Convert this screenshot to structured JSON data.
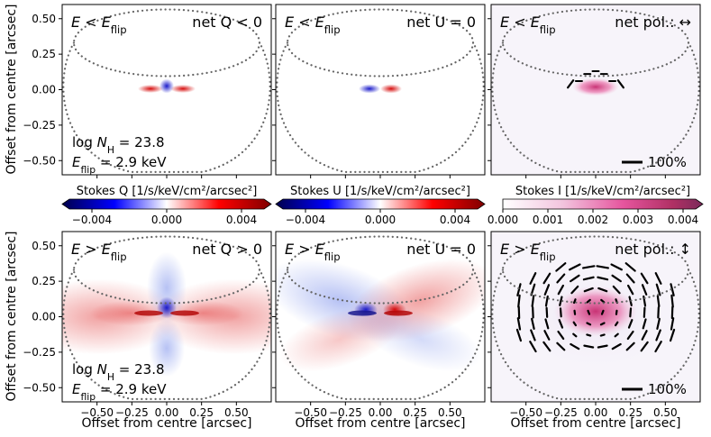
{
  "figure": {
    "common": {
      "ylabel": "Offset from centre [arcsec]",
      "xlabel": "Offset from centre [arcsec]",
      "yticks": [
        "0.50",
        "0.25",
        "0.00",
        "−0.25",
        "−0.50"
      ],
      "xticks": [
        "−0.50",
        "−0.25",
        "0.00",
        "0.25",
        "0.50"
      ],
      "annotations": {
        "logNH": "log N_H = 23.8",
        "Eflip": "E_flip = 2.9 keV",
        "scalebar": "100%"
      }
    },
    "colorbars": [
      {
        "label": "Stokes Q [1/s/keV/cm²/arcsec²]",
        "ticks": [
          "−0.004",
          "0.000",
          "0.004"
        ],
        "cmap": "seismic"
      },
      {
        "label": "Stokes U [1/s/keV/cm²/arcsec²]",
        "ticks": [
          "−0.004",
          "0.000",
          "0.004"
        ],
        "cmap": "seismic"
      },
      {
        "label": "Stokes I [1/s/keV/cm²/arcsec²]",
        "ticks": [
          "0.000",
          "0.001",
          "0.002",
          "0.003",
          "0.004"
        ],
        "cmap": "pink-purple"
      }
    ],
    "colors": {
      "positive": "#d40000",
      "negative": "#1010c8",
      "intensity": "#d0307a",
      "bar": "#000000"
    }
  },
  "chart_data": [
    {
      "type": "heatmap",
      "panel": "top-left",
      "quantity": "Stokes Q",
      "regime": "E < E_flip",
      "title_left": "E < E_flip",
      "title_right": "net Q < 0",
      "xlim": [
        -0.75,
        0.75
      ],
      "ylim": [
        -0.6,
        0.6
      ],
      "vmin": -0.005,
      "vmax": 0.005
    },
    {
      "type": "heatmap",
      "panel": "top-middle",
      "quantity": "Stokes U",
      "regime": "E < E_flip",
      "title_left": "E < E_flip",
      "title_right": "net U = 0",
      "xlim": [
        -0.75,
        0.75
      ],
      "ylim": [
        -0.6,
        0.6
      ],
      "vmin": -0.005,
      "vmax": 0.005
    },
    {
      "type": "heatmap",
      "panel": "top-right",
      "quantity": "Stokes I",
      "regime": "E < E_flip",
      "title_left": "E < E_flip",
      "title_right": "net pol.: ↔",
      "xlim": [
        -0.75,
        0.75
      ],
      "ylim": [
        -0.6,
        0.6
      ],
      "vmin": 0.0,
      "vmax": 0.0045
    },
    {
      "type": "heatmap",
      "panel": "bottom-left",
      "quantity": "Stokes Q",
      "regime": "E > E_flip",
      "title_left": "E > E_flip",
      "title_right": "net Q > 0",
      "xlim": [
        -0.75,
        0.75
      ],
      "ylim": [
        -0.6,
        0.6
      ],
      "vmin": -0.005,
      "vmax": 0.005
    },
    {
      "type": "heatmap",
      "panel": "bottom-middle",
      "quantity": "Stokes U",
      "regime": "E > E_flip",
      "title_left": "E > E_flip",
      "title_right": "net U = 0",
      "xlim": [
        -0.75,
        0.75
      ],
      "ylim": [
        -0.6,
        0.6
      ],
      "vmin": -0.005,
      "vmax": 0.005
    },
    {
      "type": "heatmap",
      "panel": "bottom-right",
      "quantity": "Stokes I",
      "regime": "E > E_flip",
      "title_left": "E > E_flip",
      "title_right": "net pol.: ↕",
      "xlim": [
        -0.75,
        0.75
      ],
      "ylim": [
        -0.6,
        0.6
      ],
      "vmin": 0.0,
      "vmax": 0.0045
    }
  ]
}
